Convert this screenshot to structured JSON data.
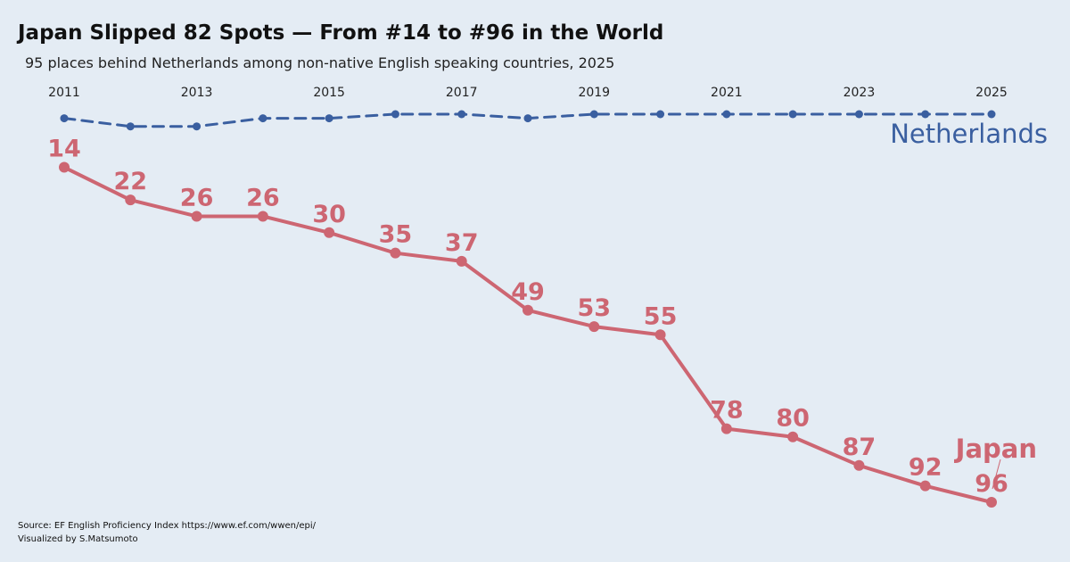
{
  "header": {
    "title": "Japan Slipped 82 Spots — From #14 to #96 in the World",
    "subtitle": "95 places behind Netherlands among non-native English speaking countries, 2025"
  },
  "footer": {
    "source": "Source: EF English Proficiency Index https://www.ef.com/wwen/epi/",
    "credit": "Visualized by S.Matsumoto"
  },
  "chart_data": {
    "type": "line",
    "x": [
      2011,
      2012,
      2013,
      2014,
      2015,
      2016,
      2017,
      2018,
      2019,
      2020,
      2021,
      2022,
      2023,
      2024,
      2025
    ],
    "x_tick_labels": [
      "2011",
      "2013",
      "2015",
      "2017",
      "2019",
      "2021",
      "2023",
      "2025"
    ],
    "x_axis_position": "top",
    "y_inverted": true,
    "grid": false,
    "series": [
      {
        "name": "Netherlands",
        "color": "#3a5fa0",
        "line_style": "dashed",
        "values": [
          2,
          4,
          4,
          2,
          2,
          1,
          1,
          2,
          1,
          1,
          1,
          1,
          1,
          1,
          1
        ]
      },
      {
        "name": "Japan",
        "color": "#cd6672",
        "line_style": "solid",
        "values": [
          14,
          22,
          26,
          26,
          30,
          35,
          37,
          49,
          53,
          55,
          78,
          80,
          87,
          92,
          96
        ],
        "data_labels": [
          "14",
          "22",
          "26",
          "26",
          "30",
          "35",
          "37",
          "49",
          "53",
          "55",
          "78",
          "80",
          "87",
          "92",
          "96"
        ]
      }
    ]
  }
}
